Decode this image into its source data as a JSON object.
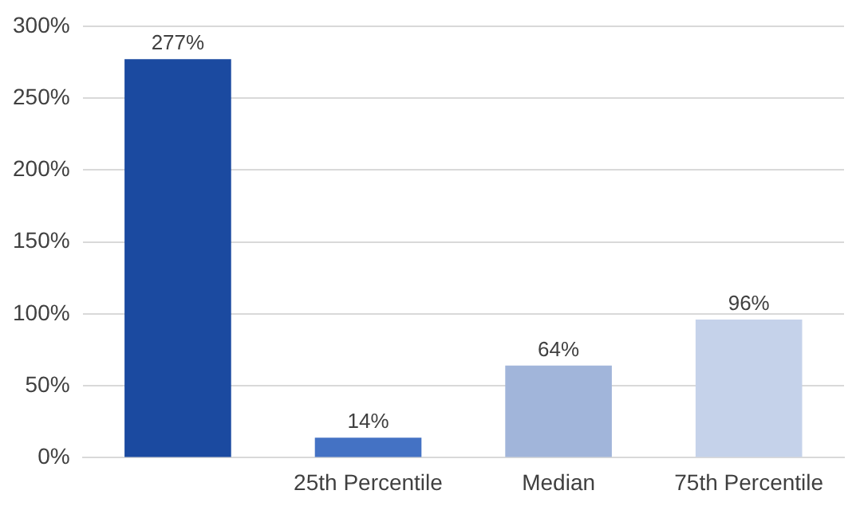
{
  "chart_data": {
    "type": "bar",
    "categories": [
      null,
      "25th Percentile",
      "Median",
      "75th Percentile"
    ],
    "values": [
      277,
      14,
      64,
      96
    ],
    "colors": [
      "#1b4aa0",
      "#4472c4",
      "#a1b5da",
      "#c5d2ea"
    ],
    "value_labels": [
      "277%",
      "14%",
      "64%",
      "96%"
    ],
    "ylim": [
      0,
      300
    ],
    "yticks": [
      {
        "value": 0,
        "label": "0%"
      },
      {
        "value": 50,
        "label": "50%"
      },
      {
        "value": 100,
        "label": "100%"
      },
      {
        "value": 150,
        "label": "150%"
      },
      {
        "value": 200,
        "label": "200%"
      },
      {
        "value": 250,
        "label": "250%"
      },
      {
        "value": 300,
        "label": "300%"
      }
    ],
    "grid": "y",
    "legend": false
  }
}
